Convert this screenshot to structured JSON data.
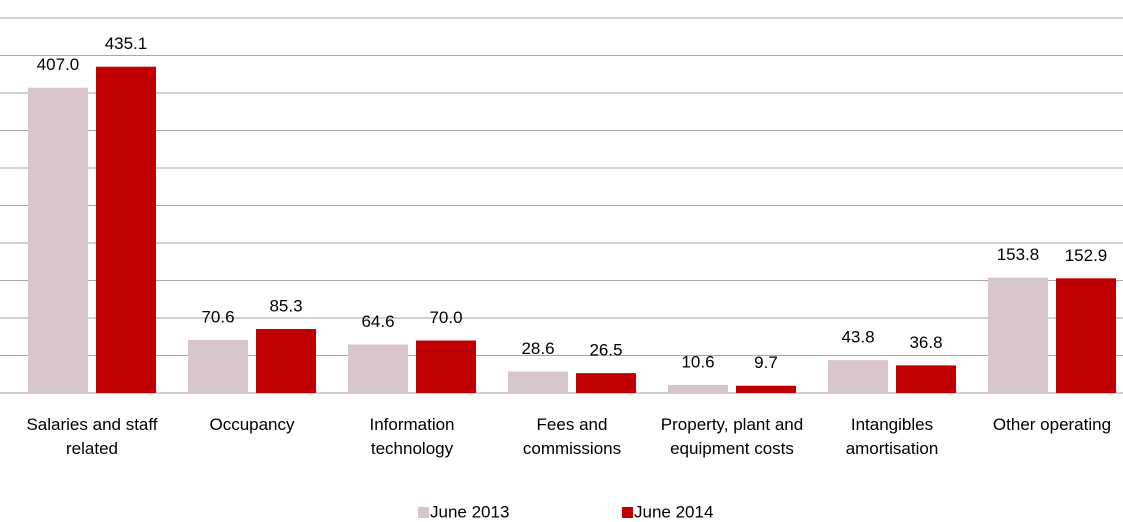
{
  "chart_data": {
    "type": "bar",
    "categories": [
      "Salaries and staff related",
      "Occupancy",
      "Information technology",
      "Fees and commissions",
      "Property, plant and equipment costs",
      "Intangibles amortisation",
      "Other operating"
    ],
    "series": [
      {
        "name": "June 2013",
        "color": "#d6c6c9",
        "values": [
          407.0,
          70.6,
          64.6,
          28.6,
          10.6,
          43.8,
          153.8
        ],
        "value_labels": [
          "407.0",
          "70.6",
          "64.6",
          "28.6",
          "10.6",
          "43.8",
          "153.8"
        ]
      },
      {
        "name": "June 2014",
        "color": "#c00000",
        "values": [
          435.1,
          85.3,
          70.0,
          26.5,
          9.7,
          36.8,
          152.9
        ],
        "value_labels": [
          "435.1",
          "85.3",
          "70.0",
          "26.5",
          "9.7",
          "36.8",
          "152.9"
        ]
      }
    ],
    "ylim": [
      0,
      500
    ],
    "yticks": [
      0,
      50,
      100,
      150,
      200,
      250,
      300,
      350,
      400,
      450,
      500
    ],
    "grid": true,
    "legend": "bottom"
  }
}
